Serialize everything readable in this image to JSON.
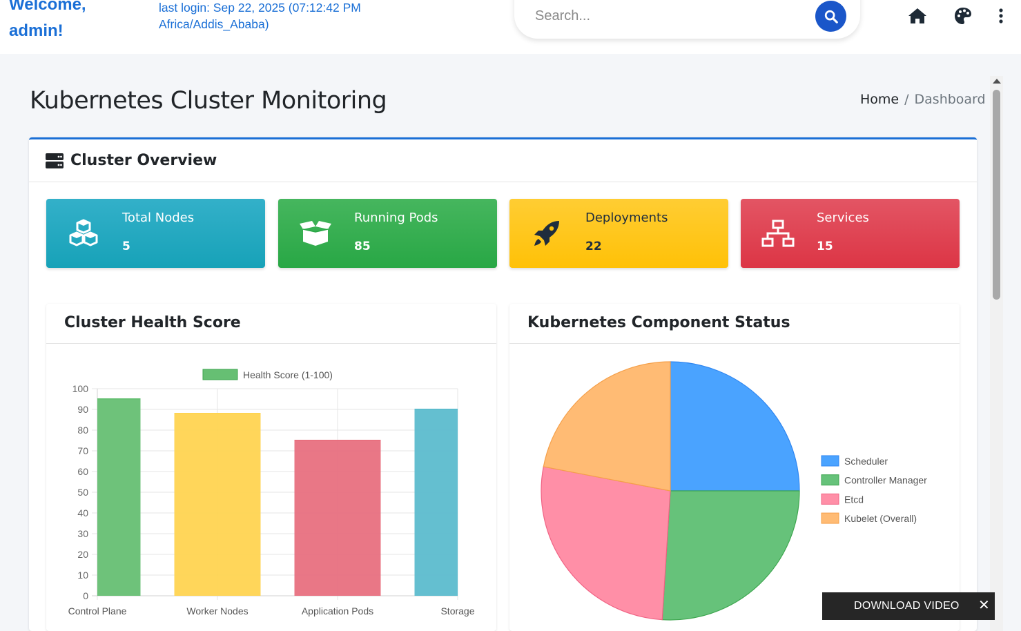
{
  "header": {
    "welcome": "Welcome, admin!",
    "last_login": "last login: Sep 22, 2025 (07:12:42 PM Africa/Addis_Ababa)",
    "search_placeholder": "Search..."
  },
  "page": {
    "title": "Kubernetes Cluster Monitoring",
    "breadcrumb": {
      "home": "Home",
      "separator": "/",
      "current": "Dashboard"
    }
  },
  "overview": {
    "title": "Cluster Overview",
    "stats": [
      {
        "label": "Total Nodes",
        "value": "5",
        "icon": "cubes-icon",
        "color": "#17a2b8"
      },
      {
        "label": "Running Pods",
        "value": "85",
        "icon": "box-open-icon",
        "color": "#28a745"
      },
      {
        "label": "Deployments",
        "value": "22",
        "icon": "rocket-icon",
        "color": "#ffc107"
      },
      {
        "label": "Services",
        "value": "15",
        "icon": "sitemap-icon",
        "color": "#dc3545"
      }
    ]
  },
  "charts": {
    "health_title": "Cluster Health Score",
    "components_title": "Kubernetes Component Status"
  },
  "chart_data": [
    {
      "type": "bar",
      "title": "",
      "categories": [
        "Control Plane",
        "Worker Nodes",
        "Application Pods",
        "Storage"
      ],
      "series": [
        {
          "name": "Health Score (1-100)",
          "values": [
            95,
            88,
            75,
            90
          ]
        }
      ],
      "colors": [
        "#66bf73",
        "#ffd451",
        "#e8707f",
        "#5cbccd"
      ],
      "ylim": [
        0,
        100
      ],
      "yticks": [
        0,
        10,
        20,
        30,
        40,
        50,
        60,
        70,
        80,
        90,
        100
      ],
      "grid": true,
      "legend": "top"
    },
    {
      "type": "pie",
      "title": "",
      "labels": [
        "Scheduler",
        "Controller Manager",
        "Etcd",
        "Kubelet (Overall)"
      ],
      "values": [
        25,
        26,
        27,
        22
      ],
      "colors": [
        "#4aa3ff",
        "#66c27a",
        "#ff8fa7",
        "#ffbb74"
      ],
      "strokes": [
        "#2f86f0",
        "#3ea64f",
        "#f06384",
        "#f5a04a"
      ],
      "legend": "right"
    }
  ],
  "download_bar": {
    "label": "DOWNLOAD VIDEO",
    "close": "✕"
  }
}
